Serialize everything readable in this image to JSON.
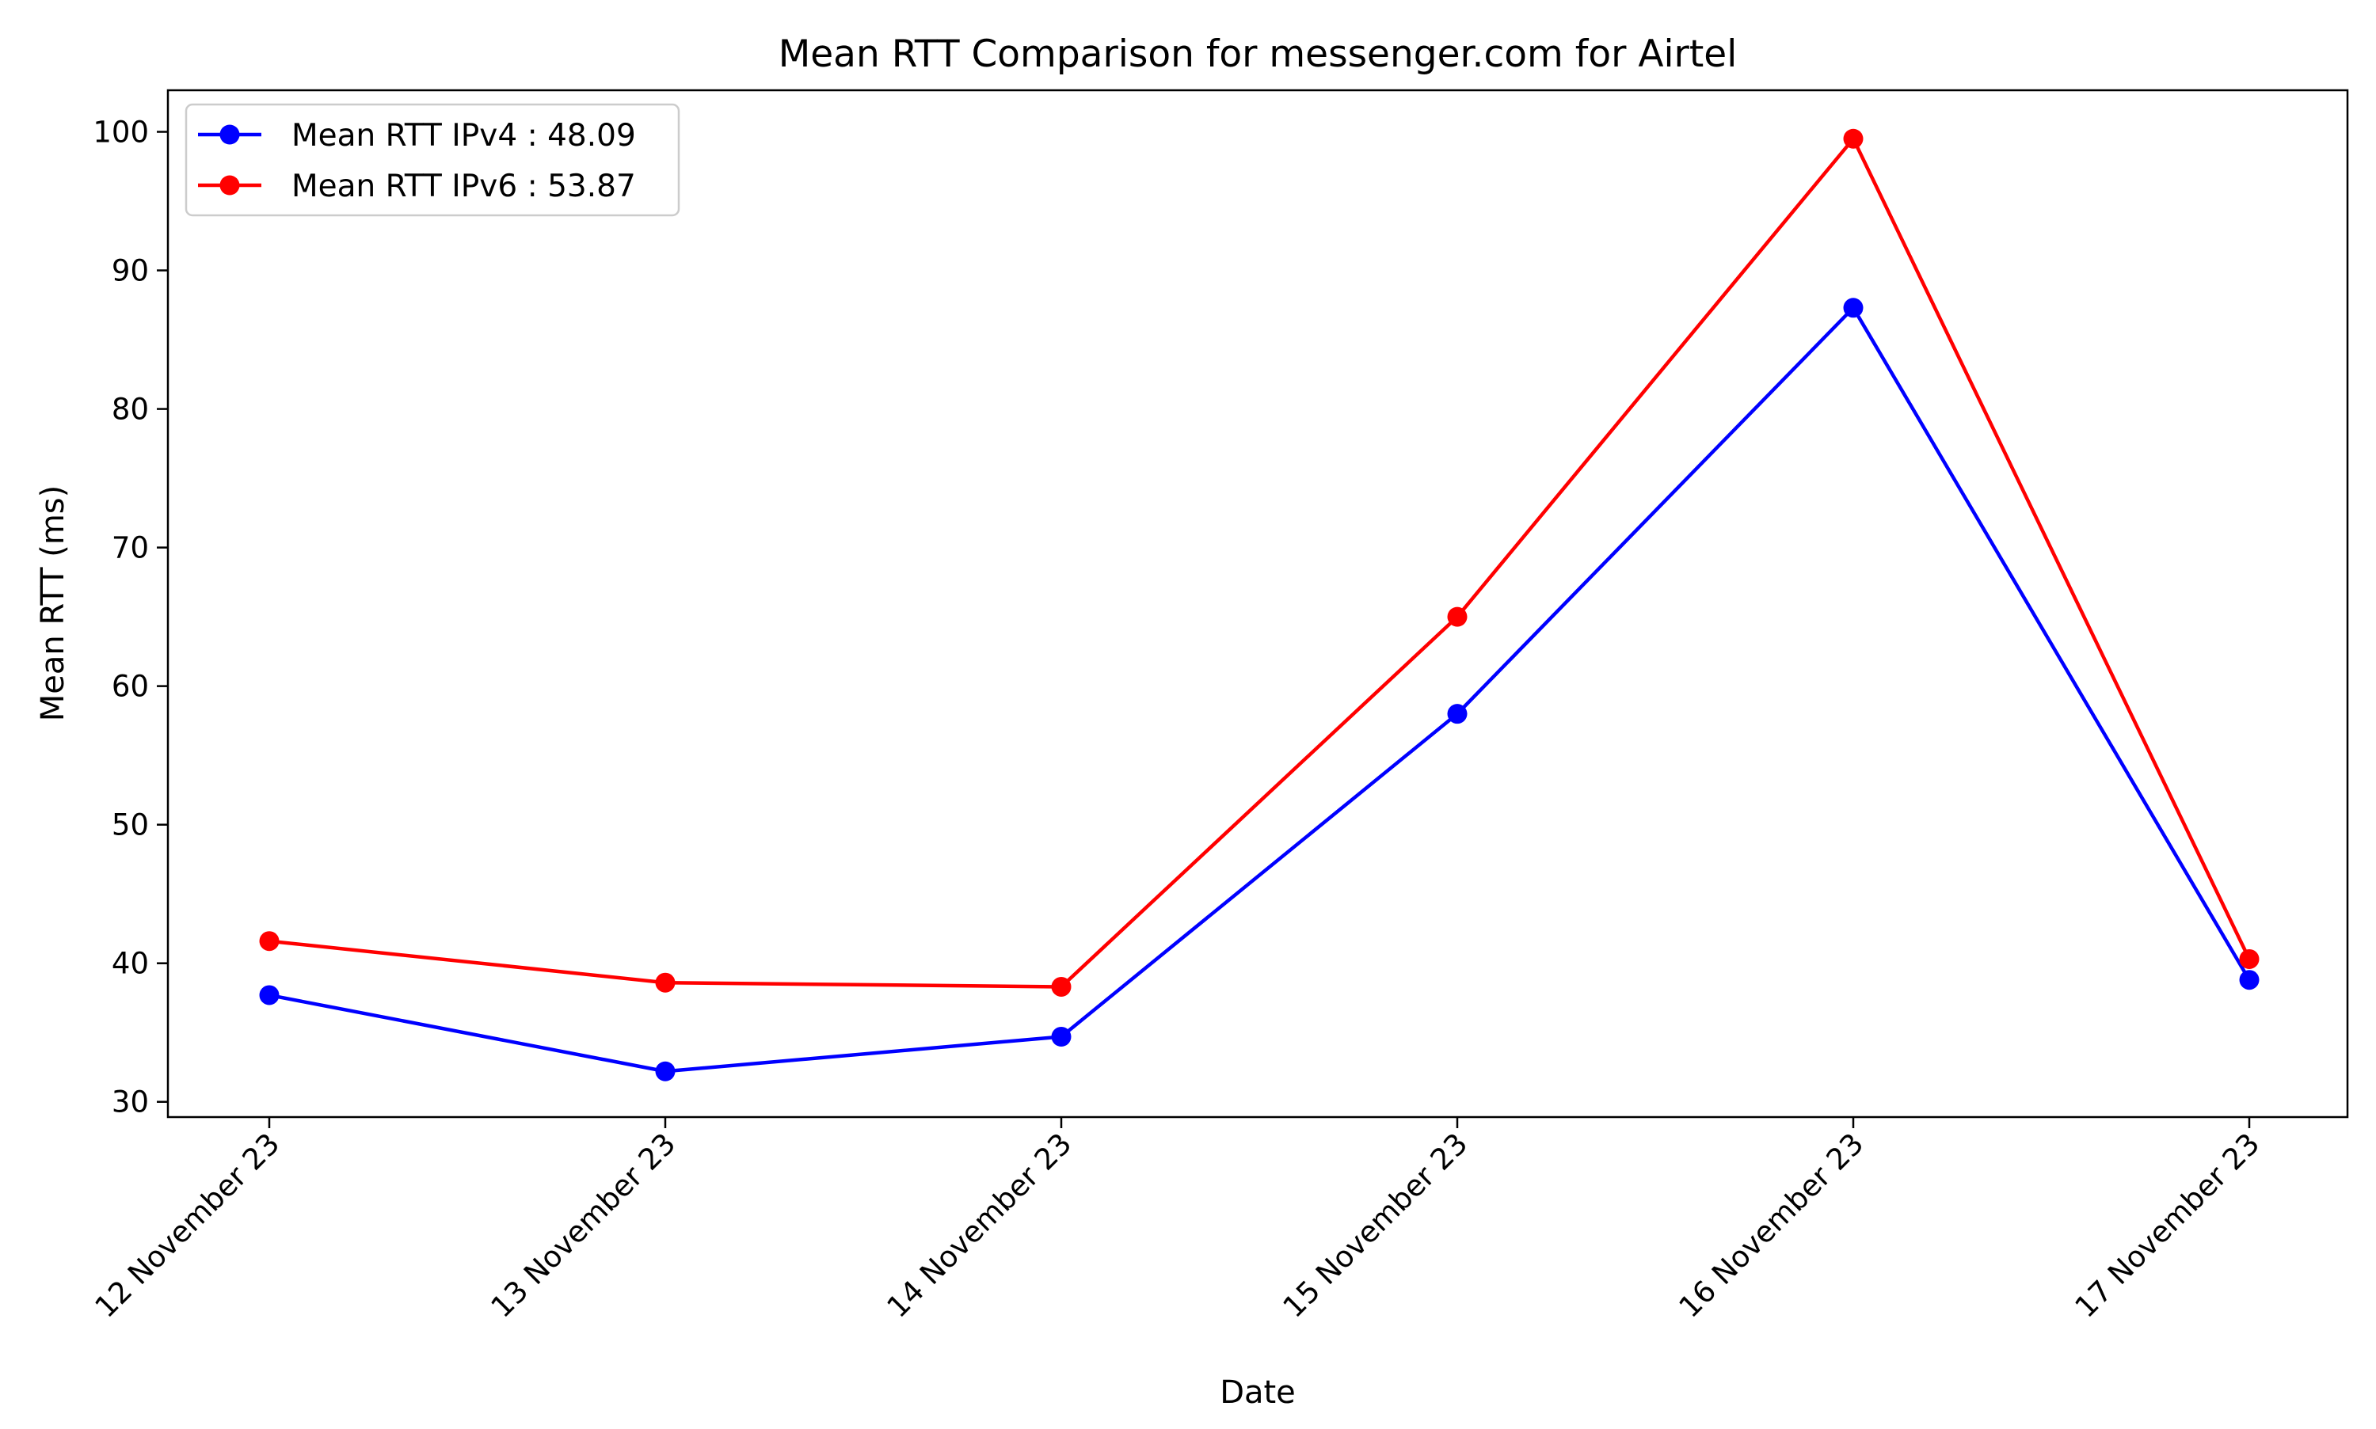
{
  "chart_data": {
    "type": "line",
    "title": "Mean RTT Comparison for messenger.com for Airtel",
    "xlabel": "Date",
    "ylabel": "Mean RTT (ms)",
    "categories": [
      "12 November 23",
      "13 November 23",
      "14 November 23",
      "15 November 23",
      "16 November 23",
      "17 November 23"
    ],
    "series": [
      {
        "name": "Mean RTT IPv4 : 48.09",
        "color": "#0000ff",
        "values": [
          37.7,
          32.2,
          34.7,
          58.0,
          87.3,
          38.8
        ]
      },
      {
        "name": "Mean RTT IPv6 : 53.87",
        "color": "#ff0000",
        "values": [
          41.6,
          38.6,
          38.3,
          65.0,
          99.5,
          40.3
        ]
      }
    ],
    "ylim": [
      28.9,
      103.0
    ],
    "yticks": [
      30,
      40,
      50,
      60,
      70,
      80,
      90,
      100
    ],
    "grid": false,
    "legend_position": "top-left"
  }
}
